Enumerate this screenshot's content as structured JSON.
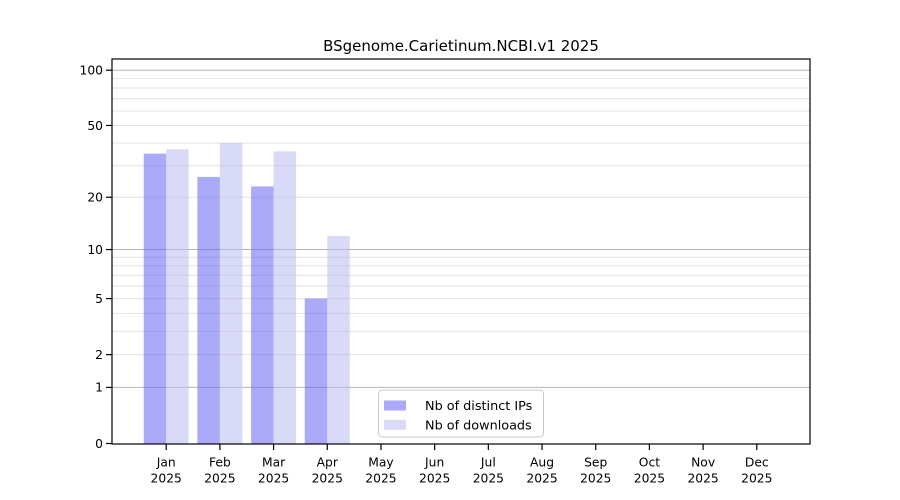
{
  "title": "BSgenome.Carietinum.NCBI.v1 2025",
  "chart_data": {
    "type": "bar",
    "title": "BSgenome.Carietinum.NCBI.v1 2025",
    "categories": [
      "Jan",
      "Feb",
      "Mar",
      "Apr",
      "May",
      "Jun",
      "Jul",
      "Aug",
      "Sep",
      "Oct",
      "Nov",
      "Dec"
    ],
    "year": "2025",
    "series": [
      {
        "name": "Nb of distinct IPs",
        "color": "#aaaaf8",
        "values": [
          35,
          26,
          23,
          5,
          0,
          0,
          0,
          0,
          0,
          0,
          0,
          0
        ]
      },
      {
        "name": "Nb of downloads",
        "color": "#d9d9f8",
        "values": [
          37,
          40,
          36,
          12,
          0,
          0,
          0,
          0,
          0,
          0,
          0,
          0
        ]
      }
    ],
    "y_scale": "log1p",
    "y_ticks": [
      0,
      1,
      2,
      5,
      10,
      20,
      50,
      100
    ],
    "ylim": [
      0,
      115
    ],
    "grid": {
      "minor": [
        2,
        3,
        4,
        5,
        6,
        7,
        8,
        9,
        20,
        30,
        40,
        50,
        60,
        70,
        80,
        90
      ],
      "major": [
        1,
        10,
        100
      ],
      "minor_color": "#e2e2e2",
      "major_color": "#b5b5b5"
    },
    "axis_color": "#000000",
    "legend": {
      "position": "inside-bottom-center",
      "items": [
        "Nb of distinct IPs",
        "Nb of downloads"
      ]
    }
  }
}
